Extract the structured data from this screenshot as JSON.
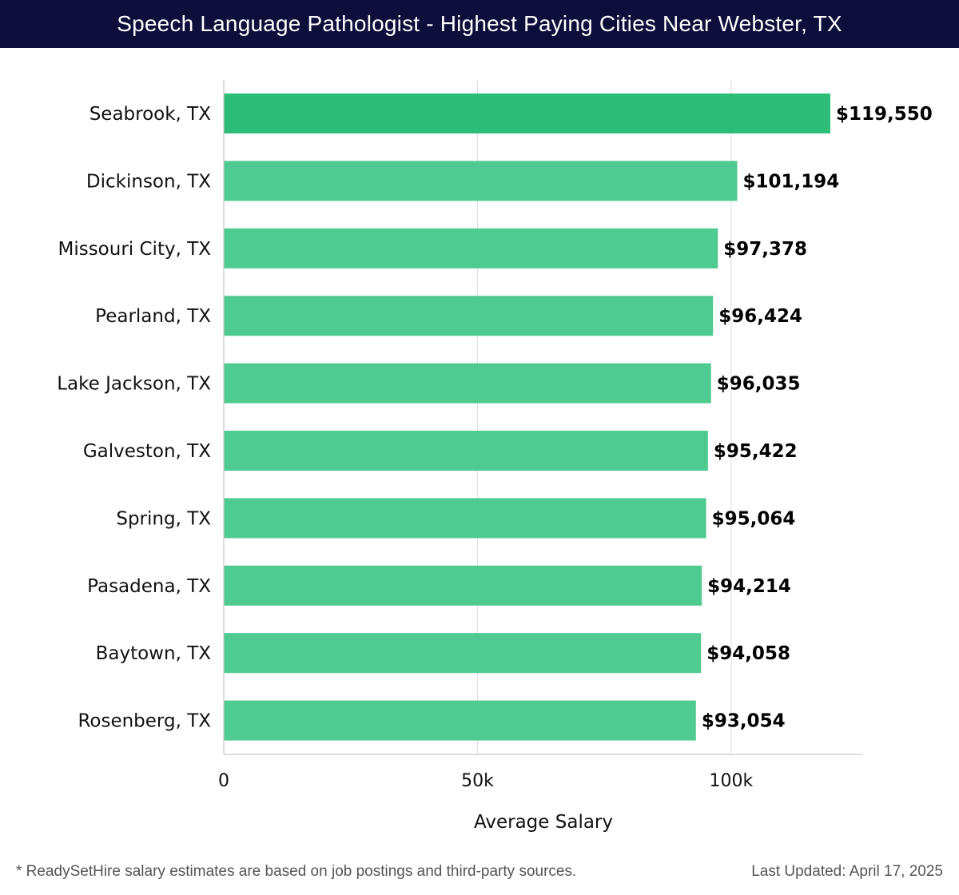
{
  "title": "Speech Language Pathologist - Highest Paying Cities Near Webster, TX",
  "footer": {
    "note": "* ReadySetHire salary estimates are based on job postings and third-party sources.",
    "updated": "Last Updated: April 17, 2025"
  },
  "colors": {
    "title_bg": "#0d0f3a",
    "top_bar": "#2dbd78",
    "bar": "#4fca90",
    "grid": "#e2e2e2",
    "axis": "#cccccc"
  },
  "chart_data": {
    "type": "bar",
    "orientation": "horizontal",
    "title": "Speech Language Pathologist - Highest Paying Cities Near Webster, TX",
    "xlabel": "Average Salary",
    "ylabel": "",
    "xlim": [
      0,
      126000
    ],
    "xticks": [
      0,
      50000,
      100000
    ],
    "xtick_labels": [
      "0",
      "50k",
      "100k"
    ],
    "grid": true,
    "categories": [
      "Seabrook, TX",
      "Dickinson, TX",
      "Missouri City, TX",
      "Pearland, TX",
      "Lake Jackson, TX",
      "Galveston, TX",
      "Spring, TX",
      "Pasadena, TX",
      "Baytown, TX",
      "Rosenberg, TX"
    ],
    "values": [
      119550,
      101194,
      97378,
      96424,
      96035,
      95422,
      95064,
      94214,
      94058,
      93054
    ],
    "value_labels": [
      "$119,550",
      "$101,194",
      "$97,378",
      "$96,424",
      "$96,035",
      "$95,422",
      "$95,064",
      "$94,214",
      "$94,058",
      "$93,054"
    ]
  }
}
